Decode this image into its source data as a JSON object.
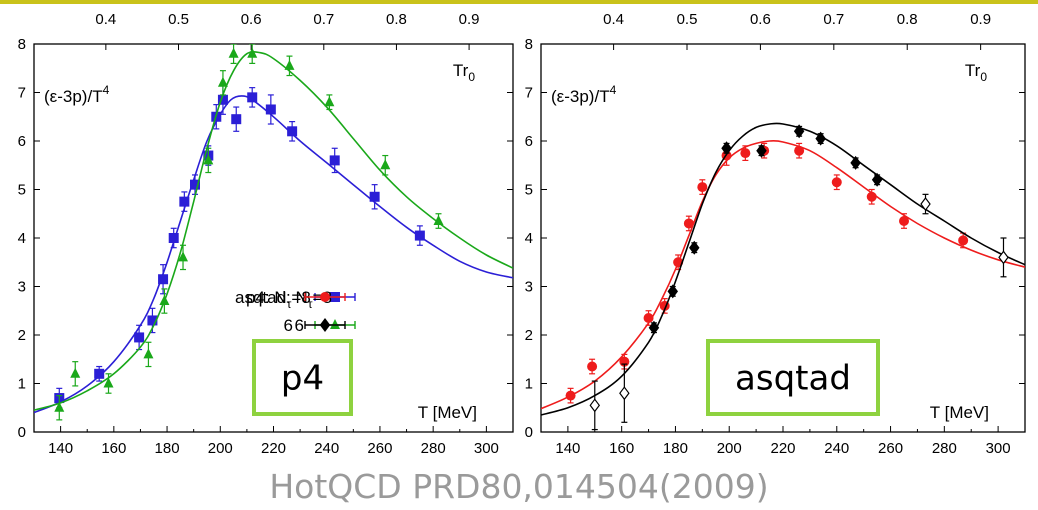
{
  "citation": "HotQCD PRD80,014504(2009)",
  "colors": {
    "p4_n8": "#2b1fd6",
    "p4_n6": "#1aa81a",
    "asq_n8": "#ee1c1c",
    "asq_n6": "#000000",
    "badge_border": "#8ed23f",
    "citation": "#9a9a9a"
  },
  "chart_data": [
    {
      "type": "scatter",
      "ylabel": "(ε-3p)/T⁴",
      "xlabel": "T [MeV]",
      "top_axis_label": "Tr₀",
      "top_axis_ticks": [
        0.4,
        0.5,
        0.6,
        0.7,
        0.8,
        0.9
      ],
      "xlim": [
        130,
        310
      ],
      "ylim": [
        0,
        8
      ],
      "x_ticks": [
        140,
        160,
        180,
        200,
        220,
        240,
        260,
        280,
        300
      ],
      "y_ticks": [
        0,
        1,
        2,
        3,
        4,
        5,
        6,
        7,
        8
      ],
      "badge": "p4",
      "legend_position": "lower-right",
      "series": [
        {
          "name": "p4: Nτ=8",
          "marker": "square",
          "color": "#2b1fd6",
          "points": [
            [
              139.5,
              0.7,
              0.2
            ],
            [
              154.5,
              1.2,
              0.15
            ],
            [
              169.5,
              1.95,
              0.25
            ],
            [
              174.5,
              2.3,
              0.25
            ],
            [
              178.5,
              3.15,
              0.3
            ],
            [
              182.5,
              4.0,
              0.2
            ],
            [
              186.5,
              4.75,
              0.2
            ],
            [
              190.5,
              5.1,
              0.2
            ],
            [
              195.5,
              5.7,
              0.2
            ],
            [
              198.5,
              6.5,
              0.25
            ],
            [
              201,
              6.85,
              0.3
            ],
            [
              206,
              6.45,
              0.25
            ],
            [
              212,
              6.9,
              0.2
            ],
            [
              219,
              6.65,
              0.3
            ],
            [
              227,
              6.2,
              0.2
            ],
            [
              243,
              5.6,
              0.25
            ],
            [
              258,
              4.85,
              0.25
            ],
            [
              275,
              4.05,
              0.2
            ]
          ],
          "curve": [
            [
              130,
              0.4
            ],
            [
              140,
              0.62
            ],
            [
              150,
              0.95
            ],
            [
              160,
              1.45
            ],
            [
              170,
              2.2
            ],
            [
              175,
              2.75
            ],
            [
              180,
              3.5
            ],
            [
              185,
              4.35
            ],
            [
              190,
              5.2
            ],
            [
              195,
              6.0
            ],
            [
              200,
              6.55
            ],
            [
              204,
              6.85
            ],
            [
              208,
              6.93
            ],
            [
              212,
              6.85
            ],
            [
              220,
              6.5
            ],
            [
              230,
              6.0
            ],
            [
              240,
              5.55
            ],
            [
              250,
              5.1
            ],
            [
              260,
              4.65
            ],
            [
              270,
              4.22
            ],
            [
              280,
              3.85
            ],
            [
              290,
              3.52
            ],
            [
              300,
              3.3
            ],
            [
              310,
              3.18
            ]
          ]
        },
        {
          "name": "6",
          "marker": "triangle",
          "color": "#1aa81a",
          "points": [
            [
              139.5,
              0.5,
              0.25
            ],
            [
              145.5,
              1.2,
              0.25
            ],
            [
              158,
              1.0,
              0.2
            ],
            [
              173,
              1.6,
              0.25
            ],
            [
              179,
              2.7,
              0.25
            ],
            [
              186,
              3.6,
              0.25
            ],
            [
              195.5,
              5.6,
              0.25
            ],
            [
              201,
              7.2,
              0.25
            ],
            [
              205,
              7.8,
              0.2
            ],
            [
              212,
              7.8,
              0.2
            ],
            [
              226,
              7.55,
              0.2
            ],
            [
              241,
              6.8,
              0.15
            ],
            [
              262,
              5.5,
              0.2
            ],
            [
              282,
              4.35,
              0.15
            ]
          ],
          "curve": [
            [
              130,
              0.45
            ],
            [
              140,
              0.6
            ],
            [
              150,
              0.85
            ],
            [
              160,
              1.2
            ],
            [
              170,
              1.75
            ],
            [
              175,
              2.2
            ],
            [
              180,
              2.85
            ],
            [
              185,
              3.7
            ],
            [
              190,
              4.75
            ],
            [
              195,
              5.85
            ],
            [
              200,
              6.8
            ],
            [
              205,
              7.45
            ],
            [
              210,
              7.8
            ],
            [
              215,
              7.82
            ],
            [
              220,
              7.7
            ],
            [
              230,
              7.25
            ],
            [
              240,
              6.7
            ],
            [
              250,
              6.05
            ],
            [
              260,
              5.4
            ],
            [
              270,
              4.85
            ],
            [
              280,
              4.4
            ],
            [
              290,
              4.0
            ],
            [
              300,
              3.65
            ],
            [
              310,
              3.38
            ]
          ]
        }
      ]
    },
    {
      "type": "scatter",
      "ylabel": "(ε-3p)/T⁴",
      "xlabel": "T [MeV]",
      "top_axis_label": "Tr₀",
      "top_axis_ticks": [
        0.4,
        0.5,
        0.6,
        0.7,
        0.8,
        0.9
      ],
      "xlim": [
        130,
        310
      ],
      "ylim": [
        0,
        8
      ],
      "x_ticks": [
        140,
        160,
        180,
        200,
        220,
        240,
        260,
        280,
        300
      ],
      "y_ticks": [
        0,
        1,
        2,
        3,
        4,
        5,
        6,
        7,
        8
      ],
      "badge": "asqtad",
      "legend_position": "lower-right",
      "series": [
        {
          "name": "asqtad: Nτ=8",
          "marker": "circle",
          "color": "#ee1c1c",
          "points": [
            [
              141,
              0.75,
              0.15
            ],
            [
              149,
              1.35,
              0.15
            ],
            [
              161,
              1.45,
              0.15
            ],
            [
              170,
              2.35,
              0.15
            ],
            [
              176,
              2.6,
              0.15
            ],
            [
              181,
              3.5,
              0.15
            ],
            [
              185,
              4.3,
              0.15
            ],
            [
              190,
              5.05,
              0.15
            ],
            [
              199,
              5.7,
              0.2
            ],
            [
              206,
              5.75,
              0.15
            ],
            [
              213,
              5.8,
              0.15
            ],
            [
              226,
              5.8,
              0.15
            ],
            [
              240,
              5.15,
              0.15
            ],
            [
              253,
              4.85,
              0.15
            ],
            [
              265,
              4.35,
              0.15
            ],
            [
              287,
              3.95,
              0.15
            ]
          ],
          "curve": [
            [
              130,
              0.48
            ],
            [
              140,
              0.72
            ],
            [
              150,
              1.05
            ],
            [
              160,
              1.55
            ],
            [
              170,
              2.25
            ],
            [
              175,
              2.75
            ],
            [
              180,
              3.35
            ],
            [
              185,
              4.05
            ],
            [
              190,
              4.75
            ],
            [
              195,
              5.3
            ],
            [
              200,
              5.65
            ],
            [
              205,
              5.85
            ],
            [
              210,
              5.95
            ],
            [
              215,
              6.0
            ],
            [
              220,
              5.98
            ],
            [
              230,
              5.8
            ],
            [
              240,
              5.45
            ],
            [
              250,
              5.05
            ],
            [
              260,
              4.65
            ],
            [
              270,
              4.3
            ],
            [
              280,
              4.0
            ],
            [
              290,
              3.75
            ],
            [
              300,
              3.55
            ],
            [
              310,
              3.4
            ]
          ]
        },
        {
          "name": "6",
          "marker": "diamond",
          "color": "#000000",
          "points": [
            [
              172,
              2.15,
              0.1
            ],
            [
              179,
              2.9,
              0.1
            ],
            [
              187,
              3.8,
              0.1
            ],
            [
              199,
              5.85,
              0.1
            ],
            [
              212,
              5.8,
              0.1
            ],
            [
              226,
              6.2,
              0.1
            ],
            [
              234,
              6.05,
              0.1
            ],
            [
              247,
              5.55,
              0.1
            ],
            [
              255,
              5.2,
              0.1
            ]
          ],
          "open_points": [
            [
              150,
              0.55,
              0.5
            ],
            [
              161,
              0.8,
              0.6
            ],
            [
              273,
              4.7,
              0.2
            ],
            [
              302,
              3.6,
              0.4
            ]
          ],
          "curve": [
            [
              130,
              0.35
            ],
            [
              140,
              0.5
            ],
            [
              150,
              0.75
            ],
            [
              160,
              1.15
            ],
            [
              170,
              1.85
            ],
            [
              175,
              2.4
            ],
            [
              180,
              3.1
            ],
            [
              185,
              3.9
            ],
            [
              190,
              4.7
            ],
            [
              195,
              5.35
            ],
            [
              200,
              5.8
            ],
            [
              205,
              6.1
            ],
            [
              210,
              6.28
            ],
            [
              215,
              6.35
            ],
            [
              220,
              6.35
            ],
            [
              230,
              6.2
            ],
            [
              240,
              5.9
            ],
            [
              250,
              5.5
            ],
            [
              260,
              5.1
            ],
            [
              270,
              4.7
            ],
            [
              280,
              4.35
            ],
            [
              290,
              4.0
            ],
            [
              300,
              3.7
            ],
            [
              310,
              3.45
            ]
          ]
        }
      ]
    }
  ]
}
